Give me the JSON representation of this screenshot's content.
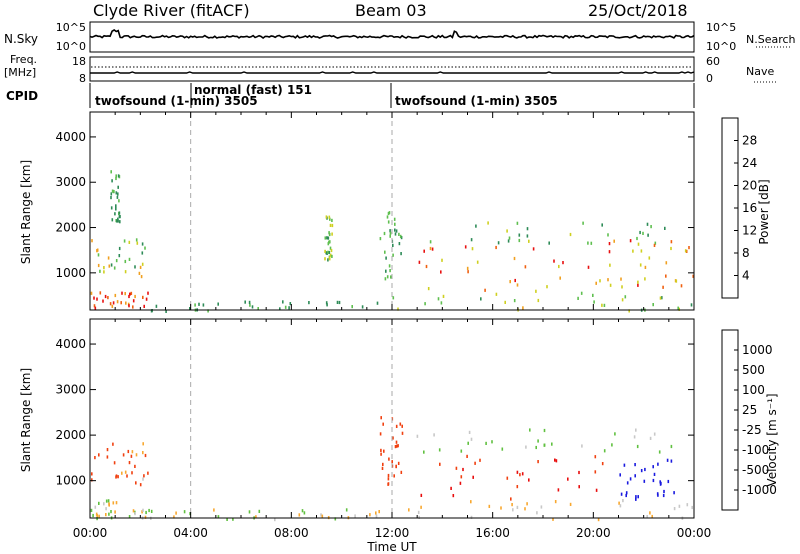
{
  "header": {
    "station_label": "Clyde River (fitACF)",
    "beam_label": "Beam 03",
    "date_label": "25/Oct/2018"
  },
  "noise_panel": {
    "left_label": "N.Sky",
    "left_ticks": [
      "10^5",
      "10^0"
    ],
    "right_ticks": [
      "10^5",
      "10^0"
    ],
    "right_label": "N.Search"
  },
  "freq_panel": {
    "left_label_line1": "Freq.",
    "left_label_line2": "[MHz]",
    "left_ticks": [
      "18",
      "8"
    ],
    "right_ticks": [
      "60",
      "0"
    ],
    "right_label": "Nave"
  },
  "cpid_panel": {
    "label": "CPID",
    "modes": [
      {
        "name": "twofsound (1-min) 3505",
        "start": 0,
        "end": 4
      },
      {
        "name": "normal (fast) 151",
        "start": 4,
        "end": 12
      },
      {
        "name": "twofsound (1-min) 3505",
        "start": 12,
        "end": 24
      }
    ]
  },
  "colors": {
    "power": [
      "#1a1aff",
      "#2a57b8",
      "#2e8b57",
      "#5fbf4f",
      "#cfd020",
      "#f0a020",
      "#f06010",
      "#e81010"
    ],
    "velocity": [
      "#e80d0d",
      "#f04010",
      "#f87818",
      "#f8a830",
      "#c8c8c8",
      "#60c040",
      "#2f8f5f",
      "#2a5ab8",
      "#1a1adf"
    ],
    "grey": "#bbbbbb"
  },
  "chart_data": [
    {
      "type": "heatmap",
      "quantity": "power",
      "xlabel": "Time UT",
      "ylabel": "Slant Range [km]",
      "colorbar_label": "Power [dB]",
      "xlim": [
        0,
        24
      ],
      "ylim": [
        180,
        4550
      ],
      "x_ticks": [
        "00:00",
        "04:00",
        "08:00",
        "12:00",
        "16:00",
        "20:00",
        "00:00"
      ],
      "y_ticks": [
        "1000",
        "2000",
        "3000",
        "4000"
      ],
      "colorbar_ticks": [
        "4",
        "8",
        "12",
        "16",
        "20",
        "24",
        "28"
      ],
      "colorbar_range": [
        0,
        32
      ],
      "regions": [
        {
          "t": [
            0.0,
            2.3
          ],
          "r": [
            880,
            1850
          ],
          "v": [
            8,
            24
          ]
        },
        {
          "t": [
            0.0,
            2.3
          ],
          "r": [
            200,
            600
          ],
          "v": [
            20,
            32
          ]
        },
        {
          "t": [
            0.8,
            1.2
          ],
          "r": [
            2150,
            3300
          ],
          "v": [
            8,
            14
          ]
        },
        {
          "t": [
            2.3,
            11.8
          ],
          "r": [
            180,
            400
          ],
          "v": [
            8,
            14
          ]
        },
        {
          "t": [
            9.3,
            9.6
          ],
          "r": [
            1300,
            2300
          ],
          "v": [
            10,
            18
          ]
        },
        {
          "t": [
            11.5,
            12.4
          ],
          "r": [
            900,
            2500
          ],
          "v": [
            8,
            16
          ]
        },
        {
          "t": [
            12.8,
            23.2
          ],
          "r": [
            1650,
            2150
          ],
          "v": [
            8,
            18
          ]
        },
        {
          "t": [
            13.0,
            20.5
          ],
          "r": [
            620,
            1650
          ],
          "v": [
            16,
            32
          ]
        },
        {
          "t": [
            20.5,
            24.0
          ],
          "r": [
            700,
            1750
          ],
          "v": [
            16,
            30
          ]
        },
        {
          "t": [
            12.0,
            24.0
          ],
          "r": [
            180,
            600
          ],
          "v": [
            10,
            22
          ]
        }
      ]
    },
    {
      "type": "heatmap",
      "quantity": "velocity",
      "xlabel": "Time UT",
      "ylabel": "Slant Range [km]",
      "colorbar_label": "Velocity [m s⁻¹]",
      "xlim": [
        0,
        24
      ],
      "ylim": [
        180,
        4550
      ],
      "x_ticks": [
        "00:00",
        "04:00",
        "08:00",
        "12:00",
        "16:00",
        "20:00",
        "00:00"
      ],
      "y_ticks": [
        "1000",
        "2000",
        "3000",
        "4000"
      ],
      "colorbar_ticks": [
        "1000",
        "500",
        "100",
        "25",
        "-25",
        "-100",
        "-500",
        "-1000"
      ],
      "colorbar_range": [
        -1000,
        1000
      ],
      "regions": [
        {
          "t": [
            0.0,
            2.3
          ],
          "r": [
            880,
            1850
          ],
          "v": [
            -500,
            25
          ]
        },
        {
          "t": [
            0.0,
            2.3
          ],
          "r": [
            200,
            600
          ],
          "v": [
            -100,
            100
          ]
        },
        {
          "t": [
            2.3,
            11.8
          ],
          "r": [
            180,
            400
          ],
          "v": [
            -100,
            100
          ]
        },
        {
          "t": [
            11.5,
            12.4
          ],
          "r": [
            900,
            2500
          ],
          "v": [
            -500,
            -100
          ]
        },
        {
          "t": [
            13.0,
            20.5
          ],
          "r": [
            620,
            1650
          ],
          "v": [
            -1000,
            -100
          ]
        },
        {
          "t": [
            12.8,
            23.2
          ],
          "r": [
            1650,
            2150
          ],
          "v": [
            -25,
            100
          ]
        },
        {
          "t": [
            21.0,
            23.5
          ],
          "r": [
            600,
            1500
          ],
          "v": [
            500,
            1000
          ]
        },
        {
          "t": [
            12.0,
            24.0
          ],
          "r": [
            180,
            600
          ],
          "v": [
            -100,
            25
          ]
        }
      ]
    }
  ]
}
